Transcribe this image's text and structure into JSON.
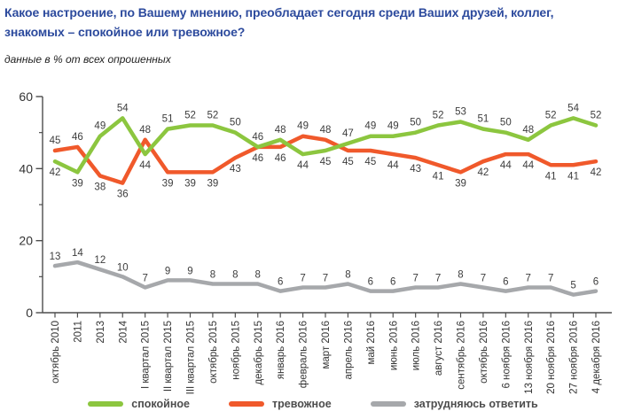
{
  "header": {
    "title_lines": [
      "Какое настроение, по Вашему мнению, преобладает сегодня среди Ваших друзей, коллег,",
      "знакомых – спокойное или тревожное?"
    ],
    "subtitle": "данные в % от всех опрошенных"
  },
  "colors": {
    "title": "#2C4A9D",
    "calm": "#8CC63F",
    "anxious": "#F0592B",
    "undecided": "#A6A8AB",
    "value_label": "#3D3D3D",
    "axis": "#4D4D4D",
    "tick_label": "#333333",
    "legend_label": "#4D4D4D"
  },
  "legend": [
    {
      "label": "спокойное",
      "color_key": "calm"
    },
    {
      "label": "тревожное",
      "color_key": "anxious"
    },
    {
      "label": "затрудняюсь ответить",
      "color_key": "undecided"
    }
  ],
  "chart_data": {
    "type": "line",
    "title": "Какое настроение, по Вашему мнению, преобладает сегодня среди Ваших друзей, коллег, знакомых – спокойное или тревожное?",
    "subtitle": "данные в % от всех опрошенных",
    "xlabel": "",
    "ylabel": "",
    "ylim": [
      0,
      60
    ],
    "yticks": [
      0,
      20,
      40,
      60
    ],
    "yticks_minor": [
      10,
      30,
      50
    ],
    "grid": false,
    "legend_position": "bottom",
    "value_labels": true,
    "categories": [
      "октябрь 2010",
      "2011",
      "2013",
      "2014",
      "I квартал 2015",
      "II квартал 2015",
      "III квартал 2015",
      "октябрь 2015",
      "ноябрь 2015",
      "декабрь 2015",
      "январь 2016",
      "февраль 2016",
      "март 2016",
      "апрель 2016",
      "май 2016",
      "июнь 2016",
      "июль 2016",
      "август 2016",
      "сентябрь 2016",
      "октябрь 2016",
      "6 ноября 2016",
      "13 ноября 2016",
      "20 ноября 2016",
      "27 ноября 2016",
      "4 декабря 2016"
    ],
    "series": [
      {
        "name": "спокойное",
        "key": "calm",
        "color": "#8CC63F",
        "values": [
          42,
          39,
          49,
          54,
          44,
          51,
          52,
          52,
          50,
          46,
          48,
          44,
          45,
          47,
          49,
          49,
          50,
          52,
          53,
          51,
          50,
          48,
          52,
          54,
          52
        ]
      },
      {
        "name": "тревожное",
        "key": "anxious",
        "color": "#F0592B",
        "values": [
          45,
          46,
          38,
          36,
          48,
          39,
          39,
          39,
          43,
          46,
          46,
          49,
          48,
          45,
          45,
          44,
          43,
          41,
          39,
          42,
          44,
          44,
          41,
          41,
          42
        ]
      },
      {
        "name": "затрудняюсь ответить",
        "key": "undecided",
        "color": "#A6A8AB",
        "values": [
          13,
          14,
          12,
          10,
          7,
          9,
          9,
          8,
          8,
          8,
          6,
          7,
          7,
          8,
          6,
          6,
          7,
          7,
          8,
          7,
          6,
          7,
          7,
          5,
          6
        ]
      }
    ]
  }
}
